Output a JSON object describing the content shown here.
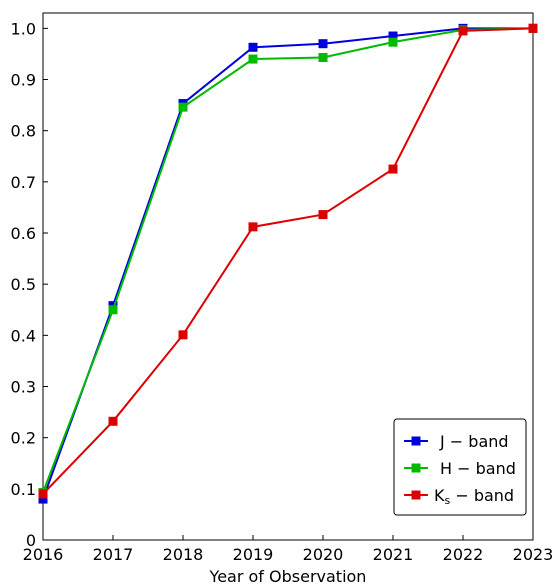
{
  "chart_data": {
    "type": "line",
    "title": "",
    "xlabel": "Year of Observation",
    "ylabel": "",
    "x": [
      2016,
      2017,
      2018,
      2019,
      2020,
      2021,
      2022,
      2023
    ],
    "xlim": [
      2016,
      2023
    ],
    "ylim": [
      0,
      1.03
    ],
    "yticks": [
      "0",
      "0.1",
      "0.2",
      "0.3",
      "0.4",
      "0.5",
      "0.6",
      "0.7",
      "0.8",
      "0.9",
      "1.0"
    ],
    "xticks": [
      "2016",
      "2017",
      "2018",
      "2019",
      "2020",
      "2021",
      "2022",
      "2023"
    ],
    "grid": false,
    "legend_position": "lower-right",
    "series": [
      {
        "name": "J − band",
        "label_main": "J",
        "label_sub": "",
        "color": "#0000dd",
        "values": [
          0.08,
          0.458,
          0.853,
          0.963,
          0.97,
          0.985,
          1.0,
          1.0
        ]
      },
      {
        "name": "H − band",
        "label_main": "H",
        "label_sub": "",
        "color": "#00bb00",
        "values": [
          0.093,
          0.45,
          0.846,
          0.94,
          0.943,
          0.973,
          0.997,
          1.0
        ]
      },
      {
        "name": "Ks − band",
        "label_main": "K",
        "label_sub": "s",
        "color": "#dd0000",
        "values": [
          0.09,
          0.232,
          0.401,
          0.612,
          0.636,
          0.725,
          0.995,
          1.0
        ]
      }
    ],
    "legend_suffix": " − band"
  }
}
